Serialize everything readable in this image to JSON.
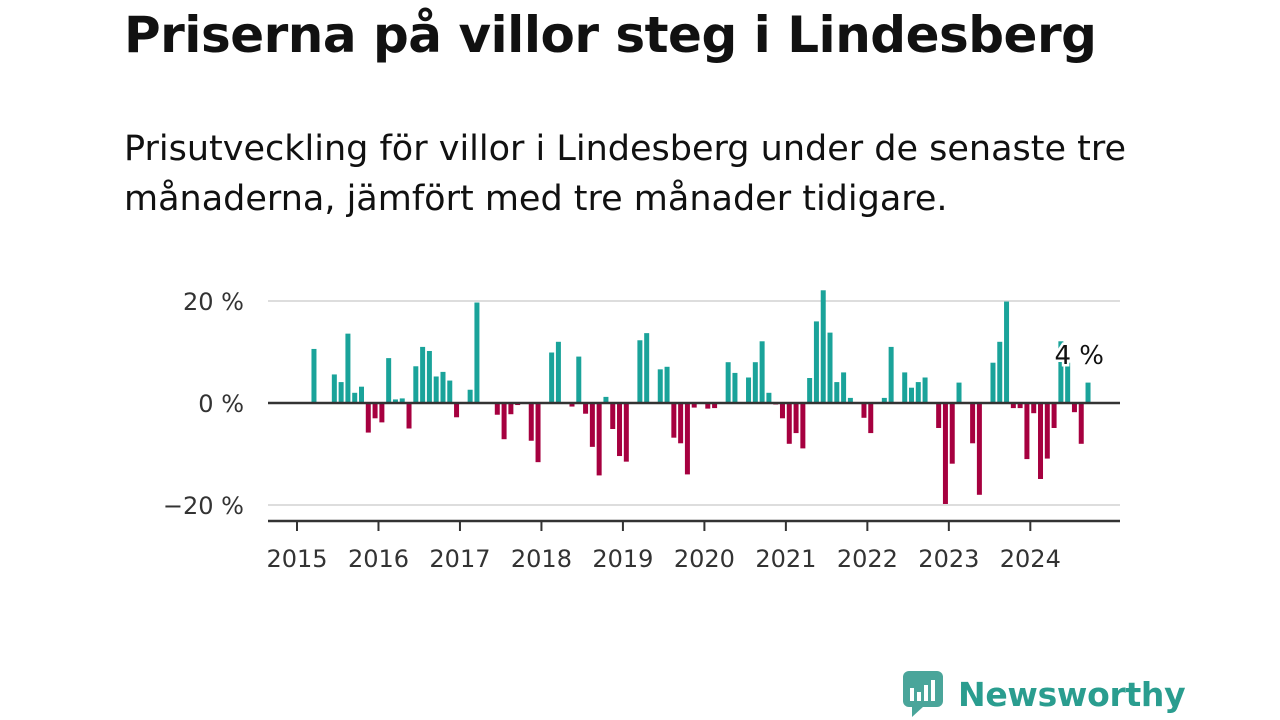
{
  "title": "Priserna på villor steg i Lindesberg",
  "subtitle": "Prisutveckling för villor i Lindesberg under de senaste tre månaderna, jämfört med tre månader tidigare.",
  "brand": {
    "name": "Newsworthy",
    "icon": "newsworthy-logo-icon",
    "color": "#4aa59a"
  },
  "colors": {
    "positive": "#1aa39a",
    "negative": "#a6003f",
    "grid": "#dddddd",
    "axis": "#333333"
  },
  "chart_data": {
    "type": "bar",
    "title": "Priserna på villor steg i Lindesberg",
    "subtitle": "Prisutveckling för villor i Lindesberg under de senaste tre månaderna, jämfört med tre månader tidigare.",
    "y_unit": "%",
    "ylim": [
      -22,
      22
    ],
    "y_ticks": [
      20,
      0,
      -20
    ],
    "y_tick_labels": [
      "20 %",
      "0 %",
      "−20 %"
    ],
    "x_ticks": [
      "2015",
      "2016",
      "2017",
      "2018",
      "2019",
      "2020",
      "2021",
      "2022",
      "2023",
      "2024"
    ],
    "grid": true,
    "annotation": {
      "label": "4 %",
      "value": 4
    },
    "start_month": "2015-01",
    "series": [
      {
        "values": [
          null,
          null,
          10.6,
          null,
          null,
          5.6,
          4.1,
          13.6,
          2.0,
          3.2,
          -5.8,
          -3.0,
          -3.8,
          8.8,
          0.7,
          0.9,
          -5.0,
          7.2,
          11.0,
          10.2,
          5.2,
          6.1,
          4.4,
          -2.8,
          0,
          2.6,
          19.7,
          null,
          null,
          -2.3,
          -7.1,
          -2.2,
          -0.4,
          null,
          -7.4,
          -11.6,
          null,
          9.9,
          12.0,
          null,
          -0.7,
          9.1,
          -2.1,
          -8.6,
          -14.2,
          1.2,
          -5.1,
          -10.4,
          -11.5,
          null,
          12.3,
          13.7,
          null,
          6.6,
          7.1,
          -6.8,
          -7.9,
          -14.0,
          -0.9,
          null,
          -1.1,
          -1.0,
          null,
          8.0,
          5.9,
          null,
          5.0,
          8.0,
          12.1,
          2.0,
          -0.3,
          -3.0,
          -8.0,
          -5.9,
          -8.9,
          4.9,
          16.0,
          22.1,
          13.8,
          4.1,
          6.0,
          1.0,
          null,
          -2.9,
          -5.9,
          null,
          1.0,
          11.0,
          null,
          6.0,
          3.0,
          4.1,
          5.0,
          null,
          -4.9,
          -19.8,
          -11.9,
          4.0,
          null,
          -7.9,
          -18.0,
          null,
          7.9,
          12.0,
          19.9,
          -1.0,
          -1.0,
          -11.0,
          -2.0,
          -14.9,
          -10.9,
          -4.9,
          12.1,
          7.9,
          -1.8,
          -8.0,
          4.0
        ]
      }
    ]
  }
}
